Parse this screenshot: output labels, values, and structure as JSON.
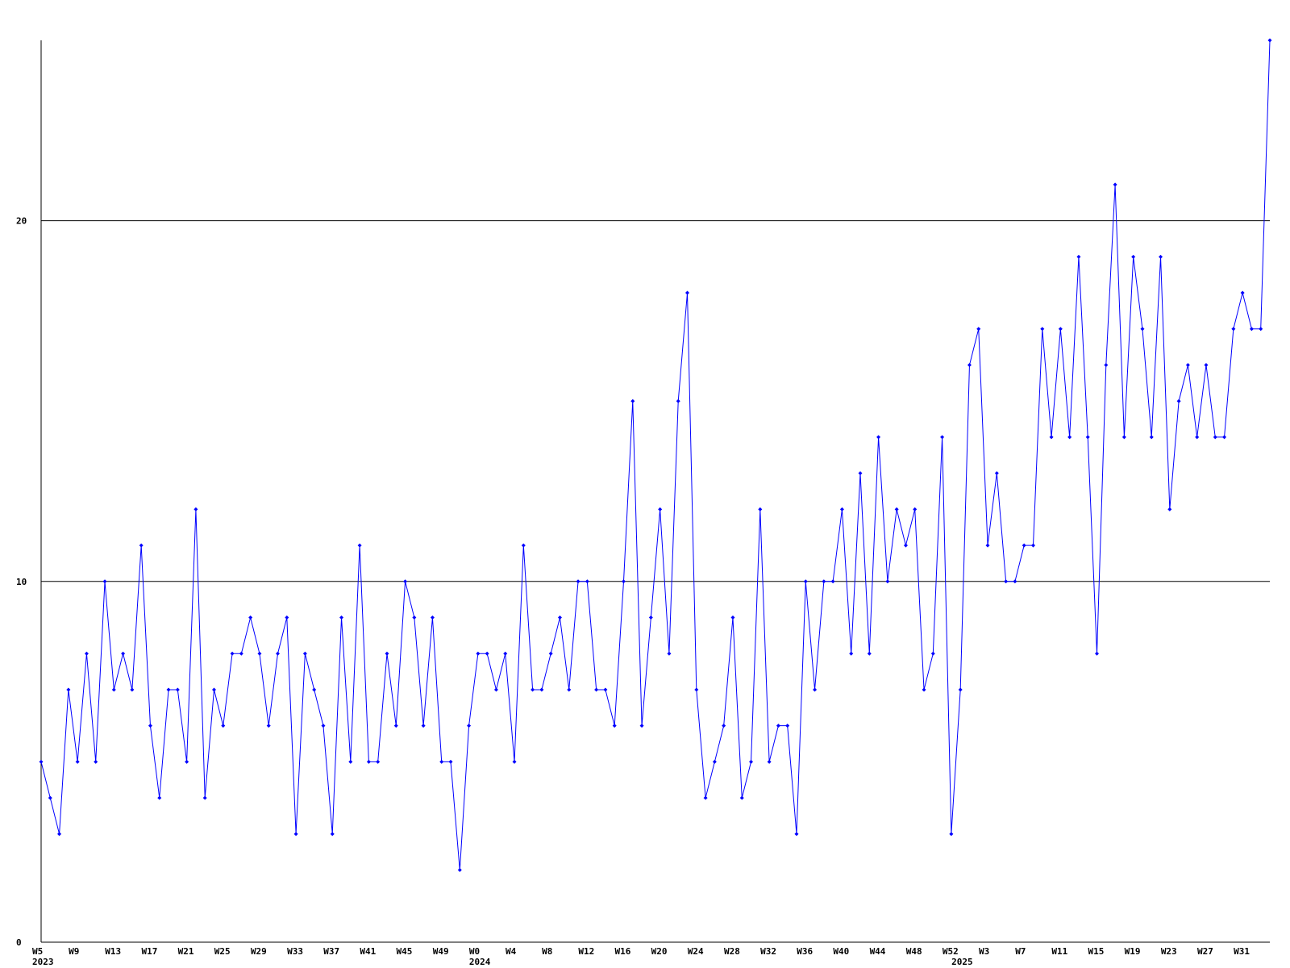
{
  "chart_data": {
    "type": "line",
    "categories": [
      "W5",
      null,
      null,
      null,
      "W9",
      null,
      null,
      null,
      "W13",
      null,
      null,
      null,
      "W17",
      null,
      null,
      null,
      "W21",
      null,
      null,
      null,
      "W25",
      null,
      null,
      null,
      "W29",
      null,
      null,
      null,
      "W33",
      null,
      null,
      null,
      "W37",
      null,
      null,
      null,
      "W41",
      null,
      null,
      null,
      "W45",
      null,
      null,
      null,
      "W49",
      null,
      null,
      null,
      "W0",
      null,
      null,
      null,
      "W4",
      null,
      null,
      null,
      "W8",
      null,
      null,
      null,
      "W12",
      null,
      null,
      null,
      "W16",
      null,
      null,
      null,
      "W20",
      null,
      null,
      null,
      "W24",
      null,
      null,
      null,
      "W28",
      null,
      null,
      null,
      "W32",
      null,
      null,
      null,
      "W36",
      null,
      null,
      null,
      "W40",
      null,
      null,
      null,
      "W44",
      null,
      null,
      null,
      "W48",
      null,
      null,
      null,
      "W52",
      null,
      null,
      null,
      "W3",
      null,
      null,
      null,
      "W7",
      null,
      null,
      null,
      "W11",
      null,
      null,
      null,
      "W15",
      null,
      null,
      null,
      "W19",
      null,
      null,
      null,
      "W23",
      null,
      null,
      null,
      "W27",
      null,
      null,
      null,
      "W31",
      null,
      null,
      null
    ],
    "year_labels": [
      "2023",
      null,
      null,
      null,
      null,
      null,
      null,
      null,
      null,
      null,
      null,
      null,
      null,
      null,
      null,
      null,
      null,
      null,
      null,
      null,
      null,
      null,
      null,
      null,
      null,
      null,
      null,
      null,
      null,
      null,
      null,
      null,
      null,
      null,
      null,
      null,
      null,
      null,
      null,
      null,
      null,
      null,
      null,
      null,
      null,
      null,
      null,
      null,
      "2024",
      null,
      null,
      null,
      null,
      null,
      null,
      null,
      null,
      null,
      null,
      null,
      null,
      null,
      null,
      null,
      null,
      null,
      null,
      null,
      null,
      null,
      null,
      null,
      null,
      null,
      null,
      null,
      null,
      null,
      null,
      null,
      null,
      null,
      null,
      null,
      null,
      null,
      null,
      null,
      null,
      null,
      null,
      null,
      null,
      null,
      null,
      null,
      null,
      null,
      null,
      null,
      null,
      "2025",
      null,
      null,
      null,
      null,
      null,
      null,
      null,
      null,
      null,
      null,
      null,
      null,
      null,
      null,
      null,
      null,
      null,
      null,
      null,
      null,
      null,
      null,
      null,
      null,
      null,
      null,
      null,
      null,
      null,
      null,
      null,
      null,
      null,
      null
    ],
    "series": [
      {
        "color": "#0000ff",
        "values": [
          5,
          4,
          3,
          7,
          5,
          8,
          5,
          10,
          7,
          8,
          7,
          11,
          6,
          4,
          7,
          7,
          5,
          12,
          4,
          7,
          6,
          8,
          8,
          9,
          8,
          6,
          8,
          9,
          3,
          8,
          7,
          6,
          3,
          9,
          5,
          11,
          5,
          5,
          8,
          6,
          10,
          9,
          6,
          9,
          5,
          5,
          2,
          6,
          8,
          8,
          7,
          8,
          5,
          11,
          7,
          7,
          8,
          9,
          7,
          10,
          10,
          7,
          7,
          6,
          10,
          15,
          6,
          9,
          12,
          8,
          15,
          18,
          7,
          4,
          5,
          6,
          9,
          4,
          5,
          12,
          5,
          6,
          6,
          3,
          10,
          7,
          10,
          10,
          12,
          8,
          13,
          8,
          14,
          10,
          12,
          11,
          12,
          7,
          8,
          14,
          3,
          7,
          16,
          17,
          11,
          13,
          10,
          10,
          11,
          11,
          17,
          14,
          17,
          14,
          19,
          14,
          8,
          16,
          21,
          14,
          19,
          17,
          14,
          19,
          12,
          15,
          16,
          14,
          16,
          14,
          14,
          17,
          18,
          17,
          17,
          25
        ]
      }
    ],
    "ylim": [
      0,
      25
    ],
    "yticks": [
      0,
      10,
      20
    ],
    "grid": true
  }
}
